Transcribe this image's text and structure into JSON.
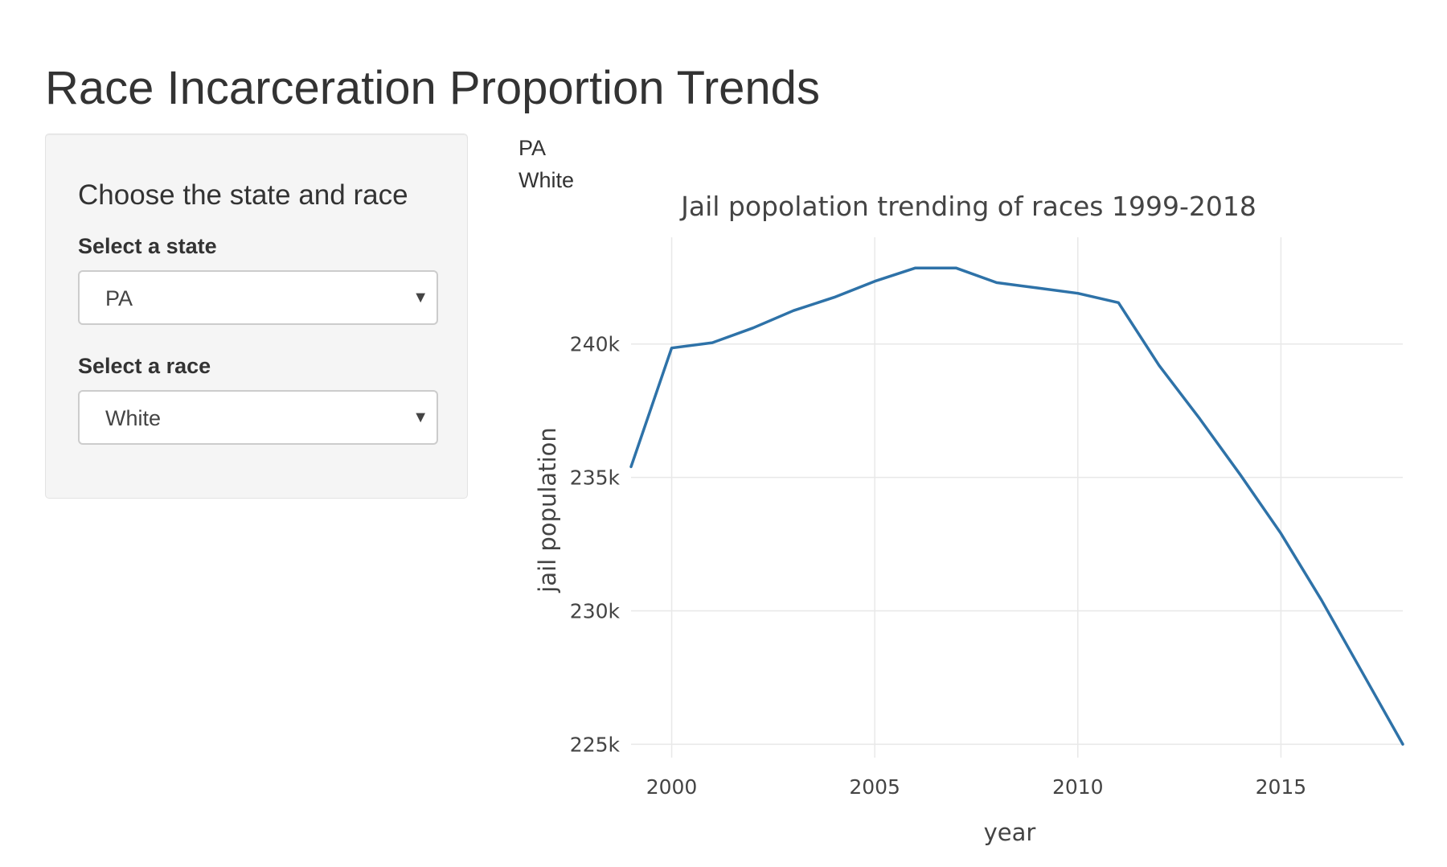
{
  "page": {
    "title": "Race Incarceration Proportion Trends"
  },
  "sidebar": {
    "heading": "Choose the state and race",
    "state_label": "Select a state",
    "state_value": "PA",
    "race_label": "Select a race",
    "race_value": "White",
    "caret_icon": "chevron-down-icon"
  },
  "output": {
    "state_text": "PA",
    "race_text": "White"
  },
  "chart_data": {
    "type": "line",
    "title": "Jail popolation trending of races 1999-2018",
    "xlabel": "year",
    "ylabel": "jail population",
    "x": [
      1999,
      2000,
      2001,
      2002,
      2003,
      2004,
      2005,
      2006,
      2007,
      2008,
      2009,
      2010,
      2011,
      2012,
      2013,
      2014,
      2015,
      2016,
      2017,
      2018
    ],
    "series": [
      {
        "values": [
          235400,
          239850,
          240050,
          240600,
          241250,
          241750,
          242350,
          242850,
          242850,
          242300,
          242100,
          241900,
          241550,
          239200,
          237200,
          235100,
          232900,
          230400,
          227700,
          225000
        ]
      }
    ],
    "xlim": [
      1999,
      2018
    ],
    "ylim": [
      224500,
      244000
    ],
    "xticks": [
      2000,
      2005,
      2010,
      2015
    ],
    "yticks": [
      225000,
      230000,
      235000,
      240000
    ],
    "ytick_labels": [
      "225k",
      "230k",
      "235k",
      "240k"
    ],
    "grid": true,
    "line_color": "#2e72a8",
    "grid_color": "#e8e8e8"
  }
}
